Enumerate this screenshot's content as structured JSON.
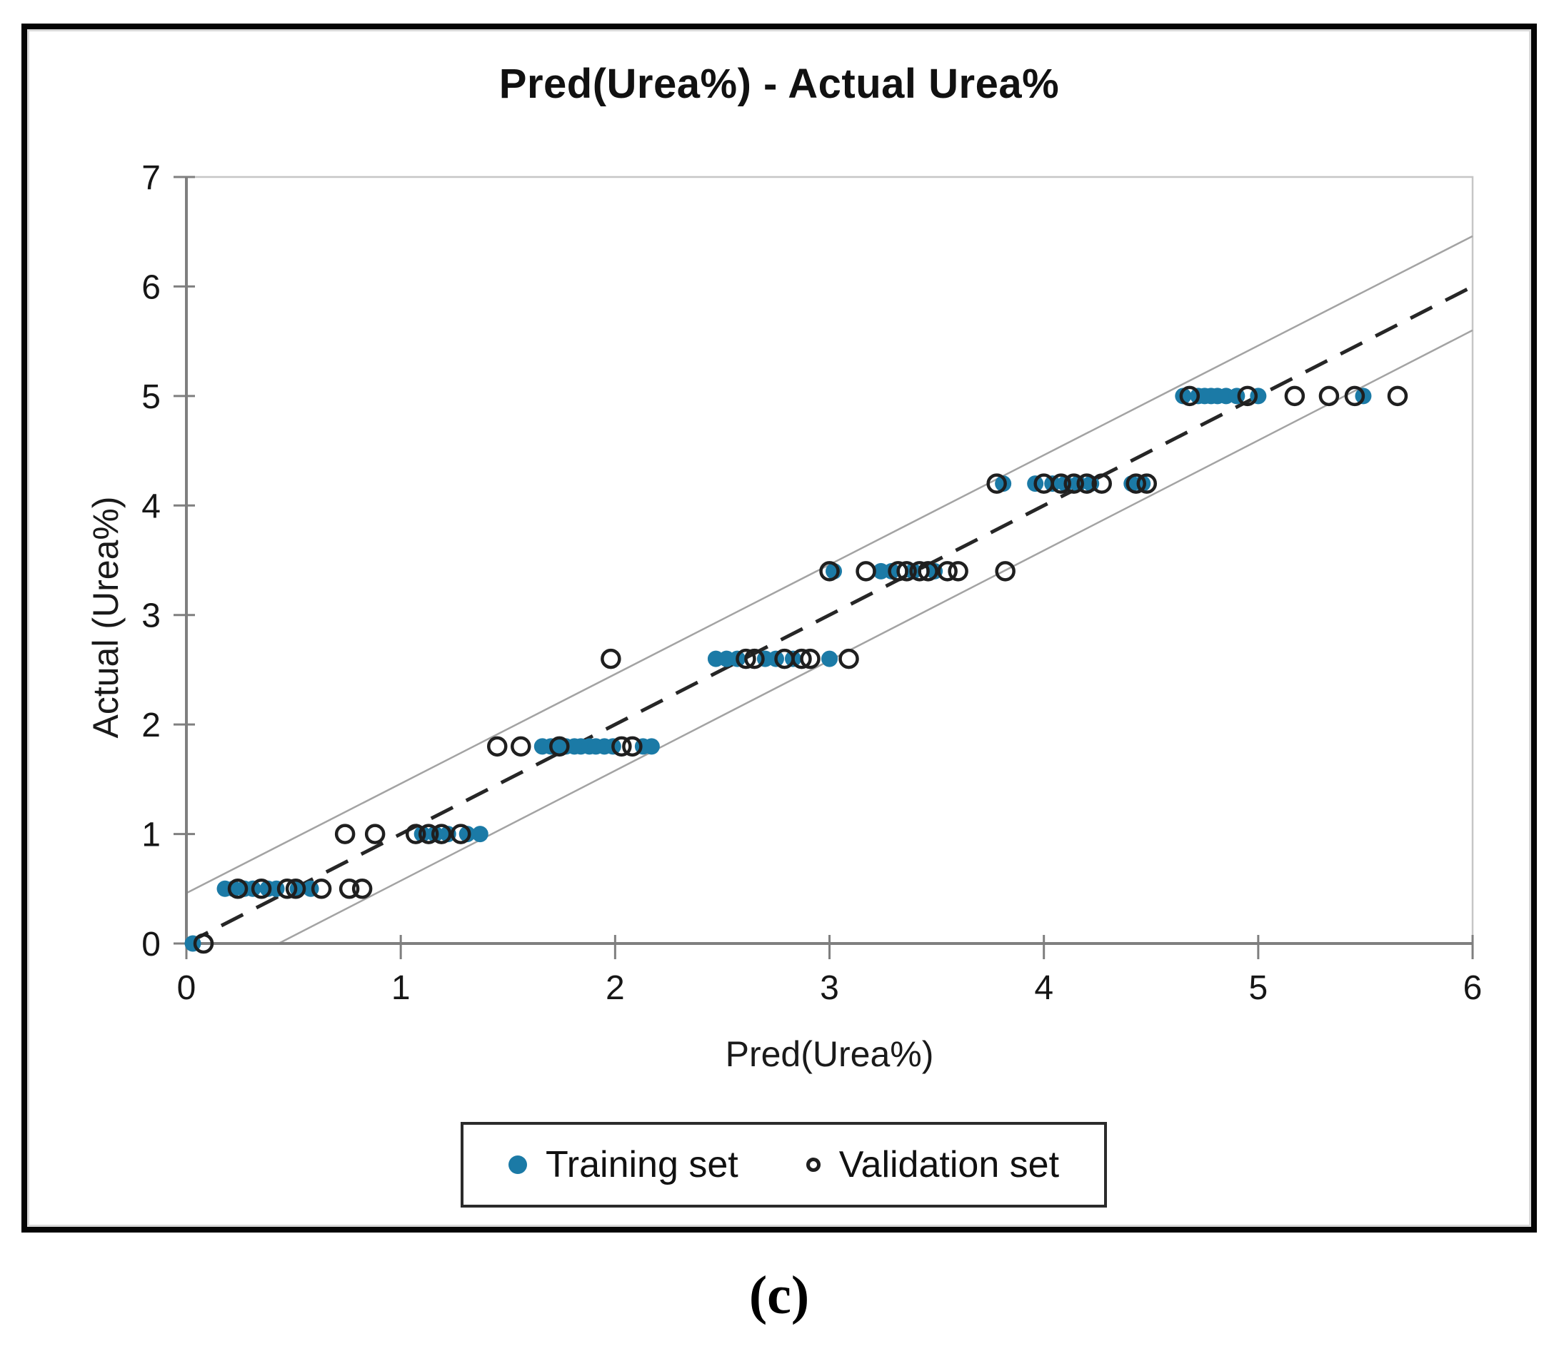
{
  "figure": {
    "caption": "(c)"
  },
  "legend": {
    "items": [
      {
        "label": "Training set",
        "marker": "filled-dot",
        "color": "#1b7aa6"
      },
      {
        "label": "Validation set",
        "marker": "open-circle",
        "color": "#1f1f1f"
      }
    ]
  },
  "chart_data": {
    "type": "scatter",
    "title": "Pred(Urea%) - Actual Urea%",
    "xlabel": "Pred(Urea%)",
    "ylabel": "Actual (Urea%)",
    "xlim": [
      0,
      6
    ],
    "ylim": [
      0,
      7
    ],
    "xticks": [
      0,
      1,
      2,
      3,
      4,
      5,
      6
    ],
    "yticks": [
      0,
      1,
      2,
      3,
      4,
      5,
      6,
      7
    ],
    "grid": false,
    "legend_position": "bottom",
    "colors": {
      "training": "#1b7aa6",
      "validation": "#1f1f1f",
      "band_lines": "#a3a3a3",
      "identity_line": "#262626",
      "axis": "#7f7f7f"
    },
    "reference_lines": [
      {
        "name": "identity",
        "style": "dashed",
        "color": "#262626",
        "from": [
          0,
          0
        ],
        "to": [
          6,
          6
        ]
      },
      {
        "name": "upper-band",
        "style": "solid",
        "color": "#a3a3a3",
        "from": [
          0,
          0.46
        ],
        "to": [
          6,
          6.46
        ]
      },
      {
        "name": "lower-band",
        "style": "solid",
        "color": "#a3a3a3",
        "from": [
          0.43,
          0
        ],
        "to": [
          6,
          5.6
        ]
      }
    ],
    "series": [
      {
        "name": "Training set",
        "marker": "filled-circle",
        "color": "#1b7aa6",
        "points": [
          [
            0.03,
            0
          ],
          [
            0.18,
            0.5
          ],
          [
            0.22,
            0.5
          ],
          [
            0.27,
            0.5
          ],
          [
            0.31,
            0.5
          ],
          [
            0.38,
            0.5
          ],
          [
            0.42,
            0.5
          ],
          [
            0.52,
            0.5
          ],
          [
            0.58,
            0.5
          ],
          [
            1.1,
            1
          ],
          [
            1.16,
            1
          ],
          [
            1.22,
            1
          ],
          [
            1.31,
            1
          ],
          [
            1.37,
            1
          ],
          [
            1.66,
            1.8
          ],
          [
            1.7,
            1.8
          ],
          [
            1.74,
            1.8
          ],
          [
            1.77,
            1.8
          ],
          [
            1.81,
            1.8
          ],
          [
            1.84,
            1.8
          ],
          [
            1.88,
            1.8
          ],
          [
            1.91,
            1.8
          ],
          [
            1.95,
            1.8
          ],
          [
            1.99,
            1.8
          ],
          [
            2.13,
            1.8
          ],
          [
            2.17,
            1.8
          ],
          [
            2.47,
            2.6
          ],
          [
            2.52,
            2.6
          ],
          [
            2.57,
            2.6
          ],
          [
            2.7,
            2.6
          ],
          [
            2.75,
            2.6
          ],
          [
            2.83,
            2.6
          ],
          [
            3.0,
            2.6
          ],
          [
            3.02,
            3.4
          ],
          [
            3.24,
            3.4
          ],
          [
            3.29,
            3.4
          ],
          [
            3.39,
            3.4
          ],
          [
            3.49,
            3.4
          ],
          [
            3.81,
            4.2
          ],
          [
            3.96,
            4.2
          ],
          [
            4.04,
            4.2
          ],
          [
            4.1,
            4.2
          ],
          [
            4.16,
            4.2
          ],
          [
            4.22,
            4.2
          ],
          [
            4.41,
            4.2
          ],
          [
            4.46,
            4.2
          ],
          [
            4.65,
            5
          ],
          [
            4.72,
            5
          ],
          [
            4.75,
            5
          ],
          [
            4.78,
            5
          ],
          [
            4.81,
            5
          ],
          [
            4.85,
            5
          ],
          [
            4.9,
            5
          ],
          [
            5.0,
            5
          ],
          [
            5.49,
            5
          ]
        ]
      },
      {
        "name": "Validation set",
        "marker": "open-circle",
        "color": "#1f1f1f",
        "points": [
          [
            0.08,
            0
          ],
          [
            0.24,
            0.5
          ],
          [
            0.35,
            0.5
          ],
          [
            0.47,
            0.5
          ],
          [
            0.51,
            0.5
          ],
          [
            0.63,
            0.5
          ],
          [
            0.76,
            0.5
          ],
          [
            0.82,
            0.5
          ],
          [
            0.74,
            1
          ],
          [
            0.88,
            1
          ],
          [
            1.07,
            1
          ],
          [
            1.13,
            1
          ],
          [
            1.19,
            1
          ],
          [
            1.28,
            1
          ],
          [
            1.45,
            1.8
          ],
          [
            1.56,
            1.8
          ],
          [
            1.74,
            1.8
          ],
          [
            2.03,
            1.8
          ],
          [
            2.08,
            1.8
          ],
          [
            1.98,
            2.6
          ],
          [
            2.61,
            2.6
          ],
          [
            2.65,
            2.6
          ],
          [
            2.79,
            2.6
          ],
          [
            2.87,
            2.6
          ],
          [
            2.91,
            2.6
          ],
          [
            3.09,
            2.6
          ],
          [
            3.0,
            3.4
          ],
          [
            3.17,
            3.4
          ],
          [
            3.32,
            3.4
          ],
          [
            3.36,
            3.4
          ],
          [
            3.42,
            3.4
          ],
          [
            3.46,
            3.4
          ],
          [
            3.55,
            3.4
          ],
          [
            3.6,
            3.4
          ],
          [
            3.82,
            3.4
          ],
          [
            3.78,
            4.2
          ],
          [
            4.0,
            4.2
          ],
          [
            4.08,
            4.2
          ],
          [
            4.14,
            4.2
          ],
          [
            4.2,
            4.2
          ],
          [
            4.27,
            4.2
          ],
          [
            4.43,
            4.2
          ],
          [
            4.48,
            4.2
          ],
          [
            4.68,
            5
          ],
          [
            4.95,
            5
          ],
          [
            5.17,
            5
          ],
          [
            5.33,
            5
          ],
          [
            5.45,
            5
          ],
          [
            5.65,
            5
          ]
        ]
      }
    ]
  }
}
